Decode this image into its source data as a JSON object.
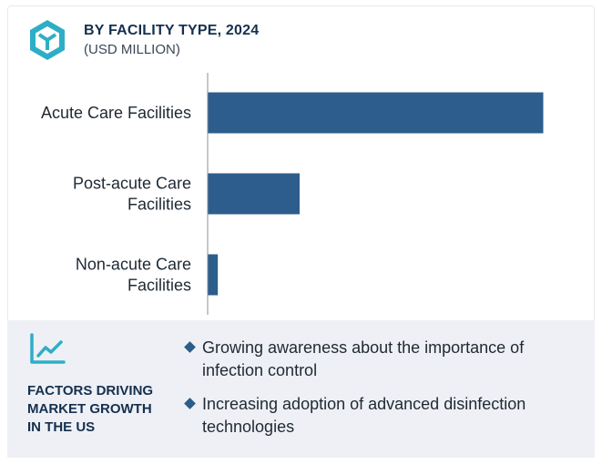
{
  "header": {
    "title": "BY FACILITY TYPE, 2024",
    "subtitle": "(USD MILLION)",
    "icon": "cube-hexagon-icon"
  },
  "colors": {
    "bar": "#2c5d8c",
    "accent": "#2eaec6",
    "title": "#15304f",
    "panel": "#eef0f5"
  },
  "chart_data": {
    "type": "bar",
    "orientation": "horizontal",
    "title": "BY FACILITY TYPE, 2024",
    "subtitle": "(USD MILLION)",
    "categories": [
      "Acute Care Facilities",
      "Post-acute Care Facilities",
      "Non-acute Care Facilities"
    ],
    "category_lines": [
      [
        "Acute Care Facilities"
      ],
      [
        "Post-acute Care",
        "Facilities"
      ],
      [
        "Non-acute Care",
        "Facilities"
      ]
    ],
    "values": [
      100,
      27.3,
      2.9
    ],
    "xlim": [
      0,
      100
    ],
    "grid": false,
    "legend": "none"
  },
  "factors": {
    "icon": "trend-chart-icon",
    "title_lines": [
      "FACTORS DRIVING",
      "MARKET GROWTH",
      "IN THE US"
    ],
    "items": [
      "Growing awareness about the importance of infection control",
      "Increasing adoption of advanced disinfection technologies"
    ]
  }
}
